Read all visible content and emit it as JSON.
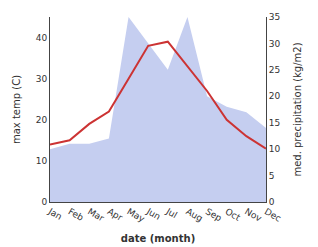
{
  "chart_data": {
    "type": "line",
    "xlabel": "date (month)",
    "ylabel": "max temp (C)",
    "y2label": "med. precipitation (kg/m2)",
    "categories": [
      "Jan",
      "Feb",
      "Mar",
      "Apr",
      "May",
      "Jun",
      "Jul",
      "Aug",
      "Sep",
      "Oct",
      "Nov",
      "Dec"
    ],
    "series": [
      {
        "type": "area",
        "axis": "y2",
        "color": "#c5cef0",
        "values": [
          10,
          11,
          11,
          12,
          35,
          30,
          25,
          35,
          20,
          18,
          17,
          14
        ]
      },
      {
        "type": "line",
        "color": "#cc3333",
        "values": [
          14,
          15,
          19,
          22,
          30,
          38,
          39,
          33,
          27,
          20,
          16,
          13
        ]
      }
    ],
    "ylim": [
      0,
      45
    ],
    "yticks": [
      0,
      10,
      20,
      30,
      40
    ],
    "y2lim": [
      0,
      35
    ],
    "y2ticks": [
      0,
      5,
      10,
      15,
      20,
      25,
      30,
      35
    ],
    "grid": false
  }
}
